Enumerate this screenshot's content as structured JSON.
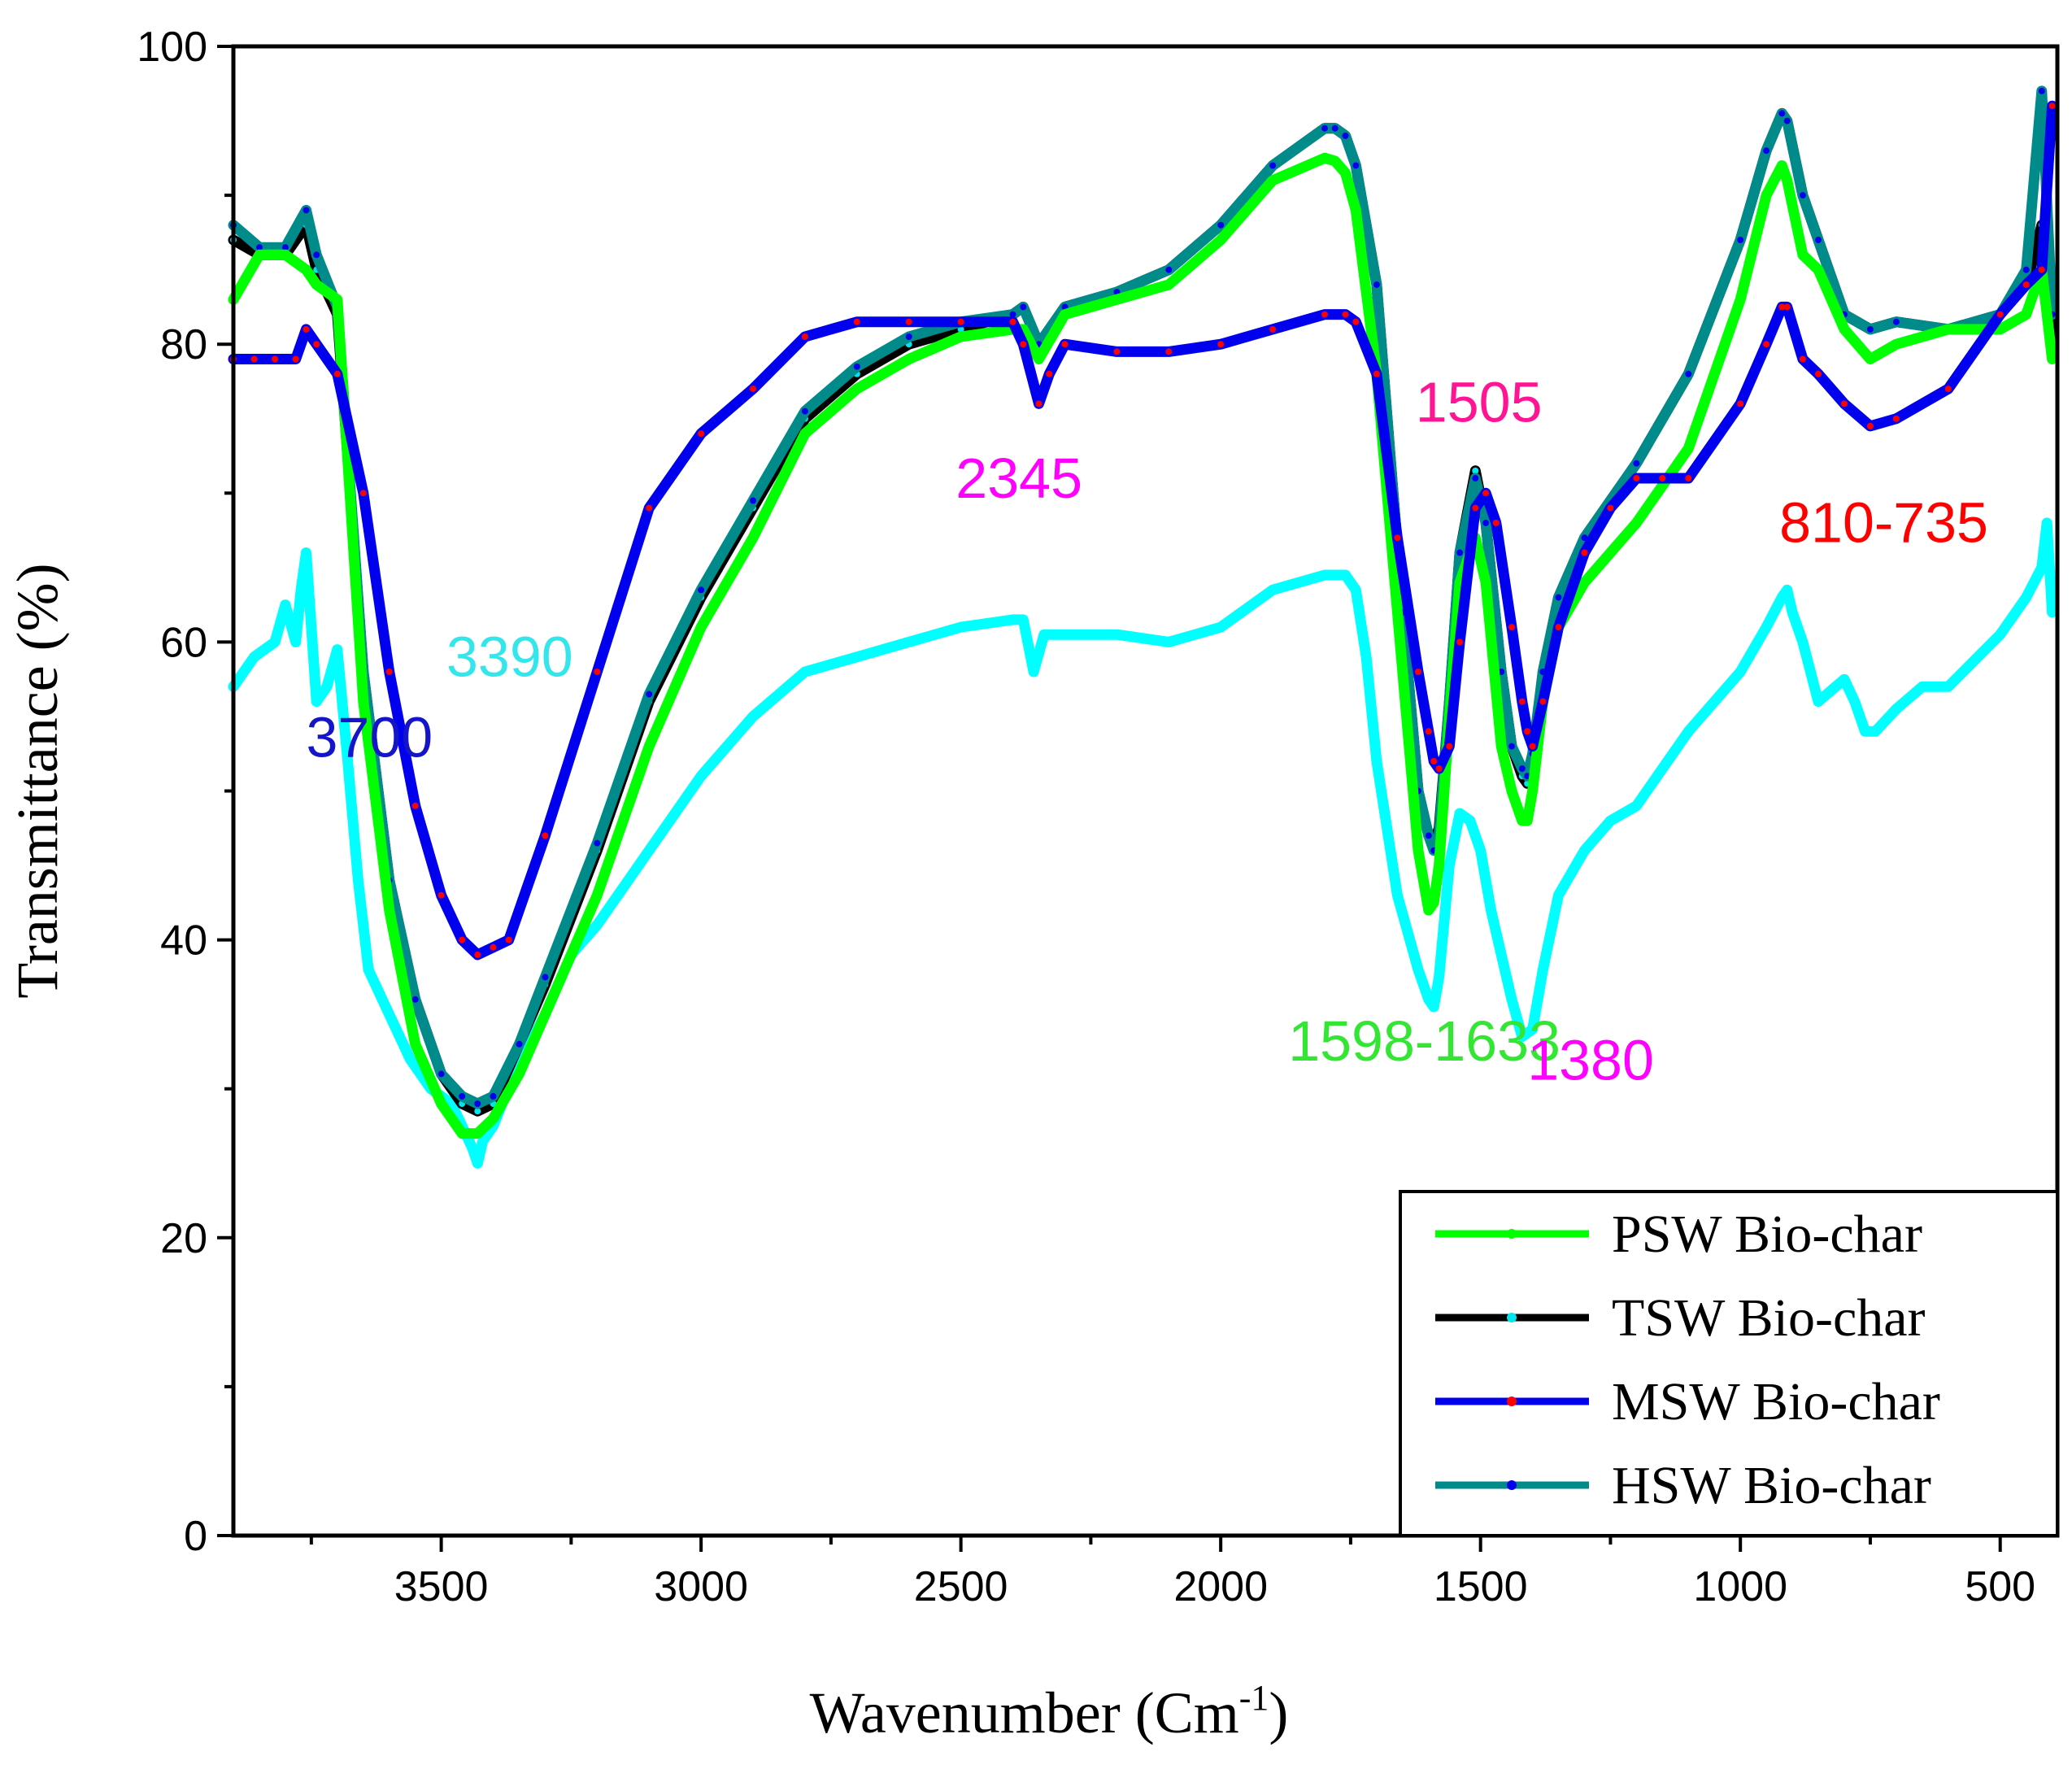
{
  "chart_data": {
    "type": "line",
    "xlabel_main": "Wavenumber (Cm",
    "xlabel_sup": "-1",
    "xlabel_close": ")",
    "ylabel": "Transmittance (%)",
    "xlim": [
      3900,
      390
    ],
    "ylim": [
      0,
      100
    ],
    "x_ticks": [
      3500,
      3000,
      2500,
      2000,
      1500,
      1000,
      500
    ],
    "y_ticks": [
      0,
      20,
      40,
      60,
      80,
      100
    ],
    "legend_position": "bottom-right",
    "series": [
      {
        "name": "PSW Bio-char",
        "color": "#00ff00",
        "marker_color": "#00ff00",
        "x": [
          3900,
          3850,
          3800,
          3760,
          3740,
          3700,
          3650,
          3600,
          3550,
          3500,
          3460,
          3430,
          3400,
          3350,
          3300,
          3200,
          3100,
          3000,
          2900,
          2800,
          2700,
          2600,
          2500,
          2400,
          2380,
          2350,
          2300,
          2200,
          2100,
          2000,
          1900,
          1800,
          1780,
          1760,
          1740,
          1700,
          1650,
          1620,
          1600,
          1590,
          1580,
          1560,
          1540,
          1510,
          1490,
          1460,
          1440,
          1420,
          1410,
          1400,
          1380,
          1350,
          1300,
          1200,
          1100,
          1000,
          950,
          920,
          910,
          880,
          850,
          800,
          750,
          700,
          600,
          500,
          450,
          420,
          400
        ],
        "y": [
          83,
          86,
          86,
          85,
          84,
          83,
          56,
          42,
          33,
          29,
          27,
          27,
          28,
          31,
          35,
          43,
          53,
          61,
          67,
          74,
          77,
          79,
          80.5,
          81,
          81,
          79,
          82,
          83,
          84,
          87,
          91,
          92.5,
          92.3,
          91.5,
          89,
          78,
          58,
          46,
          42,
          42.5,
          45,
          55,
          64,
          67,
          64,
          53,
          50,
          48,
          48,
          50,
          56,
          61,
          64,
          68,
          73,
          83,
          90,
          92,
          91,
          86,
          85,
          81,
          79,
          80,
          81,
          81,
          82,
          85,
          79
        ]
      },
      {
        "name": "TSW Bio-char",
        "color": "#000000",
        "marker_color": "#00e5ee",
        "x": [
          3900,
          3850,
          3800,
          3760,
          3740,
          3700,
          3650,
          3600,
          3550,
          3500,
          3460,
          3430,
          3400,
          3350,
          3300,
          3200,
          3100,
          3000,
          2900,
          2800,
          2700,
          2600,
          2500,
          2400,
          2380,
          2350,
          2300,
          2200,
          2100,
          2000,
          1900,
          1800,
          1780,
          1760,
          1740,
          1700,
          1650,
          1620,
          1600,
          1590,
          1580,
          1560,
          1540,
          1510,
          1490,
          1460,
          1440,
          1420,
          1410,
          1400,
          1380,
          1350,
          1300,
          1200,
          1100,
          1000,
          950,
          920,
          910,
          880,
          850,
          800,
          750,
          700,
          600,
          500,
          450,
          420,
          400
        ],
        "y": [
          87,
          86,
          86,
          88,
          85,
          82,
          58,
          44,
          36,
          31,
          29,
          28.5,
          29,
          33,
          37,
          46,
          56,
          63,
          69,
          75,
          78,
          80,
          81,
          82,
          82.5,
          80,
          82.5,
          83.5,
          85,
          88,
          92,
          94.5,
          94.5,
          94,
          92,
          84,
          62,
          50,
          47,
          46.5,
          47.5,
          56,
          66,
          71.5,
          68,
          58,
          53,
          51,
          50.5,
          52,
          58,
          63,
          67,
          72,
          78,
          87,
          93,
          95.5,
          95,
          90,
          87,
          82,
          81,
          81.5,
          81,
          82,
          84,
          88,
          80
        ]
      },
      {
        "name": "MSW Bio-char",
        "color": "#0000ee",
        "marker_color": "#ff0000",
        "x": [
          3900,
          3860,
          3820,
          3780,
          3760,
          3740,
          3700,
          3650,
          3600,
          3550,
          3500,
          3460,
          3430,
          3400,
          3370,
          3300,
          3200,
          3100,
          3000,
          2900,
          2800,
          2700,
          2600,
          2500,
          2400,
          2380,
          2350,
          2330,
          2300,
          2200,
          2100,
          2000,
          1900,
          1800,
          1760,
          1740,
          1700,
          1660,
          1620,
          1600,
          1590,
          1580,
          1560,
          1540,
          1510,
          1490,
          1470,
          1440,
          1420,
          1410,
          1400,
          1380,
          1350,
          1300,
          1250,
          1200,
          1150,
          1100,
          1000,
          950,
          920,
          910,
          880,
          850,
          800,
          750,
          700,
          600,
          500,
          450,
          420,
          400
        ],
        "y": [
          79,
          79,
          79,
          79,
          81,
          80,
          78,
          70,
          58,
          49,
          43,
          40,
          39,
          39.5,
          40,
          47,
          58,
          69,
          74,
          77,
          80.5,
          81.5,
          81.5,
          81.5,
          81.5,
          80,
          76,
          78,
          80,
          79.5,
          79.5,
          80,
          81,
          82,
          82,
          81.5,
          78,
          67,
          58,
          54,
          52,
          51.5,
          53,
          60,
          69,
          70,
          68,
          61,
          56,
          54,
          53,
          56,
          61,
          66,
          69,
          71,
          71,
          71,
          76,
          80,
          82.5,
          82.5,
          79,
          78,
          76,
          74.5,
          75,
          77,
          82,
          84,
          85,
          96
        ]
      },
      {
        "name": "HSW Bio-char",
        "color": "#008b8b",
        "marker_color": "#0000ee",
        "x": [
          3900,
          3850,
          3800,
          3760,
          3740,
          3700,
          3650,
          3600,
          3550,
          3500,
          3460,
          3430,
          3400,
          3350,
          3300,
          3200,
          3100,
          3000,
          2900,
          2800,
          2700,
          2600,
          2500,
          2400,
          2380,
          2350,
          2300,
          2200,
          2100,
          2000,
          1900,
          1800,
          1780,
          1760,
          1740,
          1700,
          1650,
          1620,
          1600,
          1590,
          1580,
          1560,
          1540,
          1510,
          1490,
          1460,
          1440,
          1420,
          1410,
          1400,
          1380,
          1350,
          1300,
          1200,
          1100,
          1000,
          950,
          920,
          910,
          880,
          850,
          800,
          750,
          700,
          600,
          500,
          450,
          420,
          400
        ],
        "y": [
          88,
          86.5,
          86.5,
          89,
          86,
          82.5,
          58,
          44,
          36,
          31,
          29.5,
          29,
          29.5,
          33,
          37.5,
          46.5,
          56.5,
          63.5,
          69.5,
          75.5,
          78.5,
          80.5,
          81.5,
          82,
          82.5,
          80,
          82.5,
          83.5,
          85,
          88,
          92,
          94.5,
          94.5,
          94,
          92,
          84,
          62,
          50,
          47,
          46,
          47,
          56,
          66,
          71,
          68,
          58,
          53,
          51.5,
          51,
          52.5,
          58,
          63,
          67,
          72,
          78,
          87,
          93,
          95.5,
          95,
          90,
          87,
          82,
          81,
          81.5,
          81,
          82,
          85,
          97,
          82
        ]
      },
      {
        "name": "",
        "color": "#00ffff",
        "marker_color": "#00ffff",
        "x": [
          3900,
          3860,
          3820,
          3800,
          3780,
          3770,
          3760,
          3740,
          3720,
          3700,
          3680,
          3660,
          3640,
          3600,
          3560,
          3520,
          3480,
          3440,
          3430,
          3420,
          3400,
          3360,
          3300,
          3250,
          3200,
          3100,
          3000,
          2900,
          2800,
          2700,
          2600,
          2500,
          2400,
          2380,
          2360,
          2340,
          2300,
          2200,
          2100,
          2000,
          1900,
          1800,
          1760,
          1740,
          1720,
          1700,
          1660,
          1620,
          1600,
          1590,
          1580,
          1560,
          1540,
          1520,
          1500,
          1480,
          1460,
          1440,
          1420,
          1400,
          1380,
          1350,
          1300,
          1250,
          1200,
          1100,
          1000,
          950,
          920,
          910,
          900,
          880,
          850,
          800,
          780,
          760,
          740,
          700,
          650,
          600,
          500,
          450,
          420,
          410,
          400
        ],
        "y": [
          57,
          59,
          60,
          62.5,
          60,
          63.5,
          66,
          56,
          57,
          59.5,
          52,
          44,
          38,
          35,
          32,
          30,
          29,
          26,
          25,
          26.5,
          27.5,
          31,
          35,
          39,
          41,
          46,
          51,
          55,
          58,
          59,
          60,
          61,
          61.5,
          61.5,
          58,
          60.5,
          60.5,
          60.5,
          60,
          61,
          63.5,
          64.5,
          64.5,
          63.5,
          59,
          52,
          43,
          38,
          36,
          35.5,
          37.5,
          45,
          48.5,
          48,
          46,
          42,
          39,
          36,
          33.5,
          34,
          38,
          43,
          46,
          48,
          49,
          54,
          58,
          61,
          63,
          63.5,
          62,
          60,
          56,
          57.5,
          56,
          54,
          54,
          55.5,
          57,
          57,
          60.5,
          63,
          65,
          68,
          62
        ]
      }
    ],
    "annotations": [
      {
        "text": "3700",
        "x": 3760,
        "y": 52.3,
        "color": "#1414c8",
        "size": "normal"
      },
      {
        "text": "3390",
        "x": 3490,
        "y": 57.7,
        "color": "#33e6ec",
        "size": "normal"
      },
      {
        "text": "2345",
        "x": 2510,
        "y": 69.7,
        "color": "#ff00ff",
        "size": "normal"
      },
      {
        "text": "1505",
        "x": 1625,
        "y": 74.8,
        "color": "#ff1493",
        "size": "large"
      },
      {
        "text": "1598-1633",
        "x": 1870,
        "y": 31.9,
        "color": "#33e633",
        "size": "normal"
      },
      {
        "text": "1380",
        "x": 1410,
        "y": 30.6,
        "color": "#ff00ff",
        "size": "normal"
      },
      {
        "text": "810-735",
        "x": 925,
        "y": 66.7,
        "color": "#ff0000",
        "size": "normal"
      }
    ]
  }
}
